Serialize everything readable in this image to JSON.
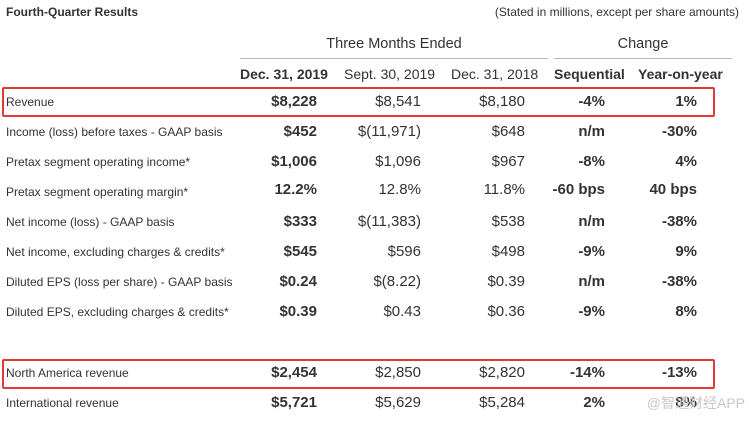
{
  "header": {
    "title": "Fourth-Quarter Results",
    "note": "(Stated in millions, except per share amounts)"
  },
  "groups": {
    "three_months": "Three Months Ended",
    "change": "Change"
  },
  "columns": [
    "Dec. 31, 2019",
    "Sept. 30, 2019",
    "Dec. 31, 2018",
    "Sequential",
    "Year-on-year"
  ],
  "rows": [
    {
      "label": "Revenue",
      "cells": [
        "$8,228",
        "$8,541",
        "$8,180",
        "-4%",
        "1%"
      ],
      "highlighted": true
    },
    {
      "label": "Income (loss) before taxes - GAAP basis",
      "cells": [
        "$452",
        "$(11,971)",
        "$648",
        "n/m",
        "-30%"
      ]
    },
    {
      "label": "Pretax segment operating income*",
      "cells": [
        "$1,006",
        "$1,096",
        "$967",
        "-8%",
        "4%"
      ]
    },
    {
      "label": "Pretax segment operating margin*",
      "cells": [
        "12.2%",
        "12.8%",
        "11.8%",
        "-60 bps",
        "40 bps"
      ]
    },
    {
      "label": "Net income (loss) - GAAP basis",
      "cells": [
        "$333",
        "$(11,383)",
        "$538",
        "n/m",
        "-38%"
      ]
    },
    {
      "label": "Net income, excluding charges & credits*",
      "cells": [
        "$545",
        "$596",
        "$498",
        "-9%",
        "9%"
      ]
    },
    {
      "label": "Diluted EPS (loss per share) - GAAP basis",
      "cells": [
        "$0.24",
        "$(8.22)",
        "$0.39",
        "n/m",
        "-38%"
      ]
    },
    {
      "label": "Diluted EPS, excluding charges & credits*",
      "cells": [
        "$0.39",
        "$0.43",
        "$0.36",
        "-9%",
        "8%"
      ]
    },
    {
      "label": "North America revenue",
      "cells": [
        "$2,454",
        "$2,850",
        "$2,820",
        "-14%",
        "-13%"
      ],
      "highlighted": true
    },
    {
      "label": "International revenue",
      "cells": [
        "$5,721",
        "$5,629",
        "$5,284",
        "2%",
        "8%"
      ]
    }
  ],
  "watermark": "@智通财经APP",
  "colors": {
    "highlight_border": "#e03a35",
    "rule": "#b9b9b9",
    "text": "#333333"
  }
}
